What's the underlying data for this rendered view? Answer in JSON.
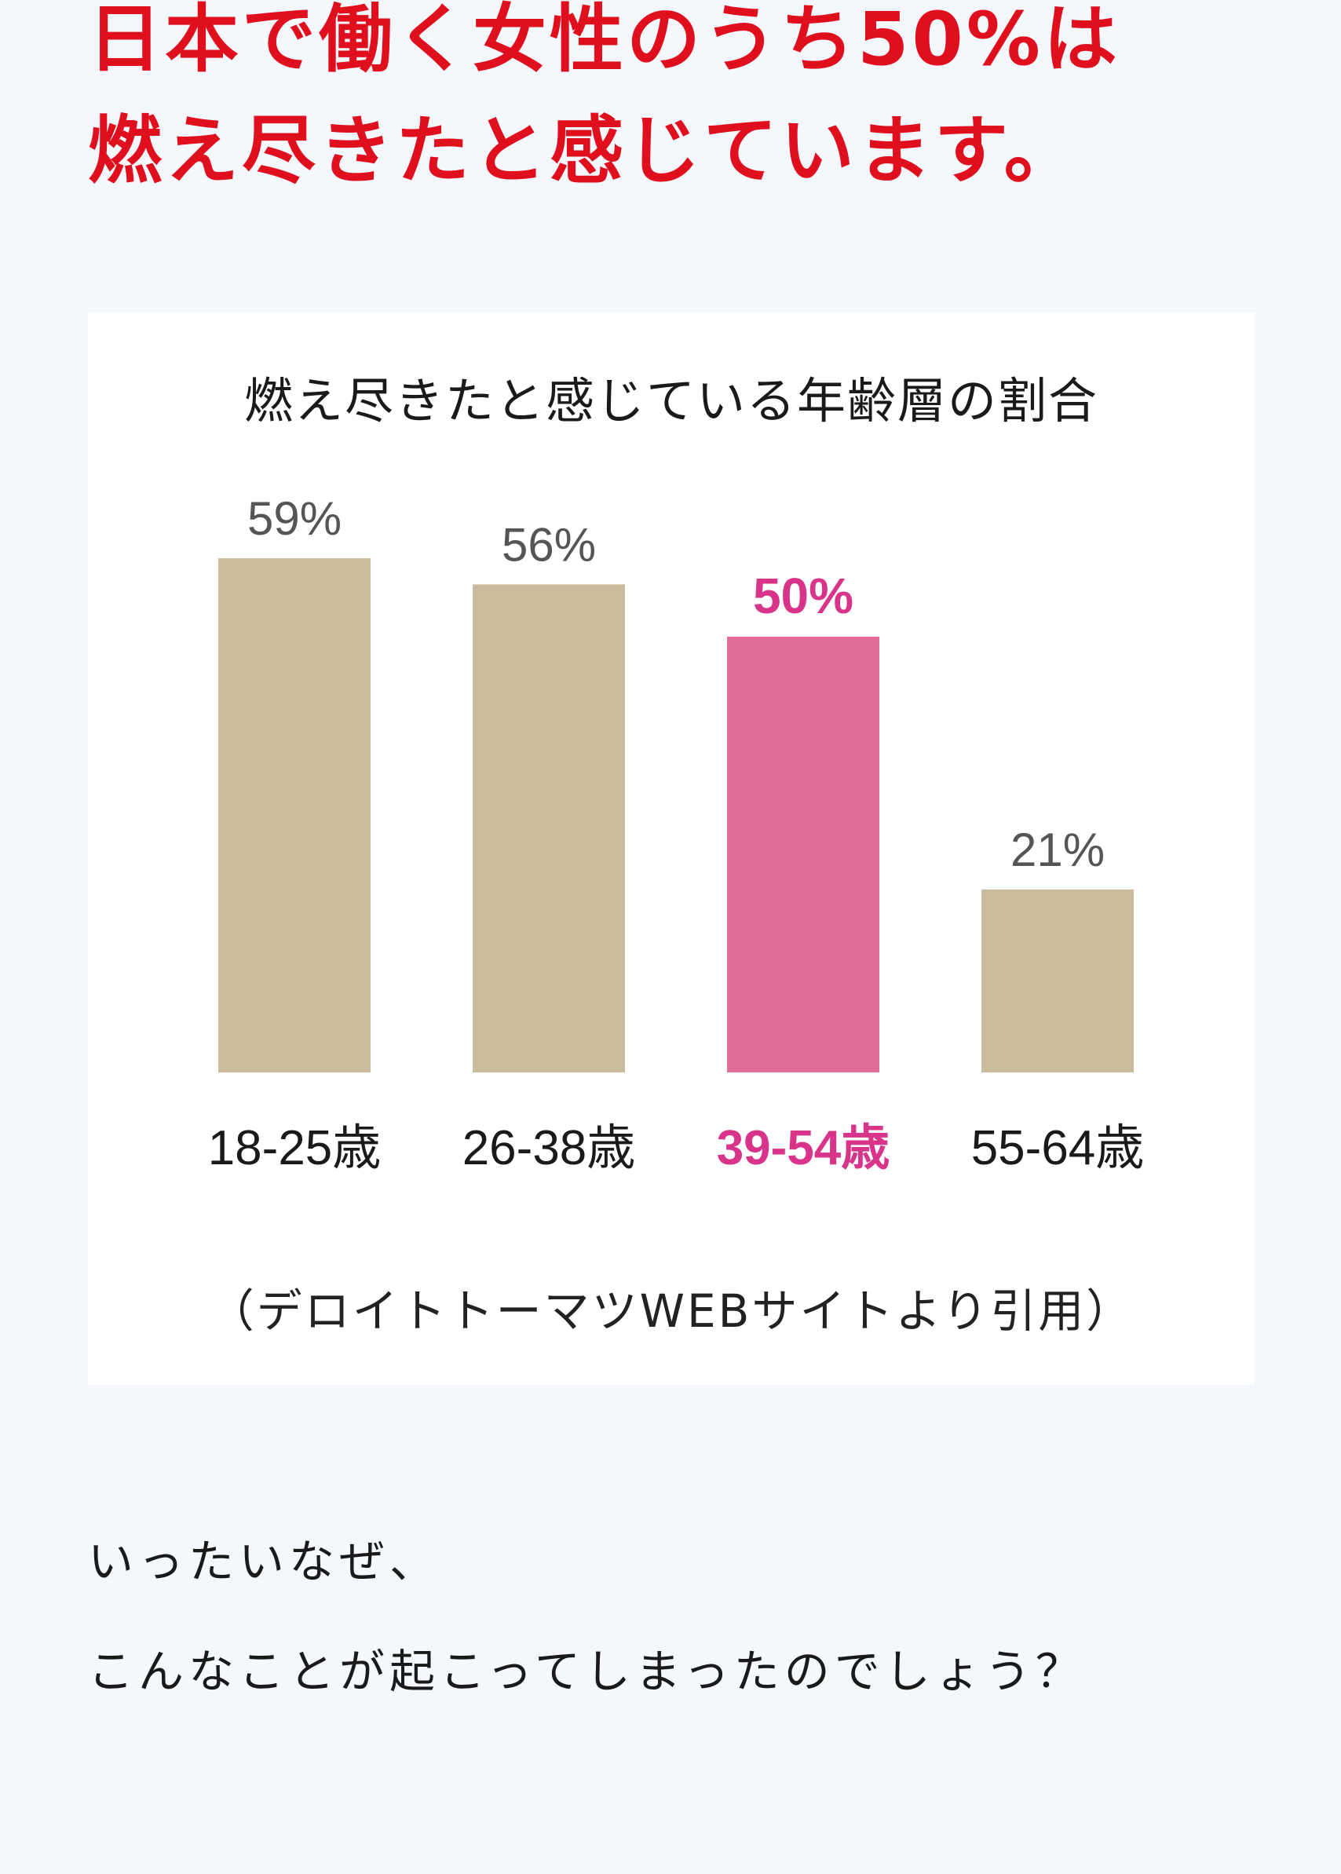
{
  "headline": {
    "line1": "日本で働く女性のうち50%は",
    "line2": "燃え尽きたと感じています。"
  },
  "colors": {
    "headline": "#e00f1e",
    "bar_default": "#c9bc9c",
    "bar_highlight": "#e26c98",
    "label_highlight": "#d8358a",
    "value_label": "#555555",
    "category_label": "#1a1a1a"
  },
  "chart_data": {
    "type": "bar",
    "title": "燃え尽きたと感じている年齢層の割合",
    "categories": [
      "18-25歳",
      "26-38歳",
      "39-54歳",
      "55-64歳"
    ],
    "values": [
      59,
      56,
      50,
      21
    ],
    "value_labels": [
      "59%",
      "56%",
      "50%",
      "21%"
    ],
    "highlight_index": 2,
    "ylim": [
      0,
      100
    ],
    "grid": false,
    "legend": "none"
  },
  "source": "（デロイトトーマツWEBサイトより引用）",
  "body": {
    "line1": "いったいなぜ、",
    "line2": "こんなことが起こってしまったのでしょう？"
  }
}
